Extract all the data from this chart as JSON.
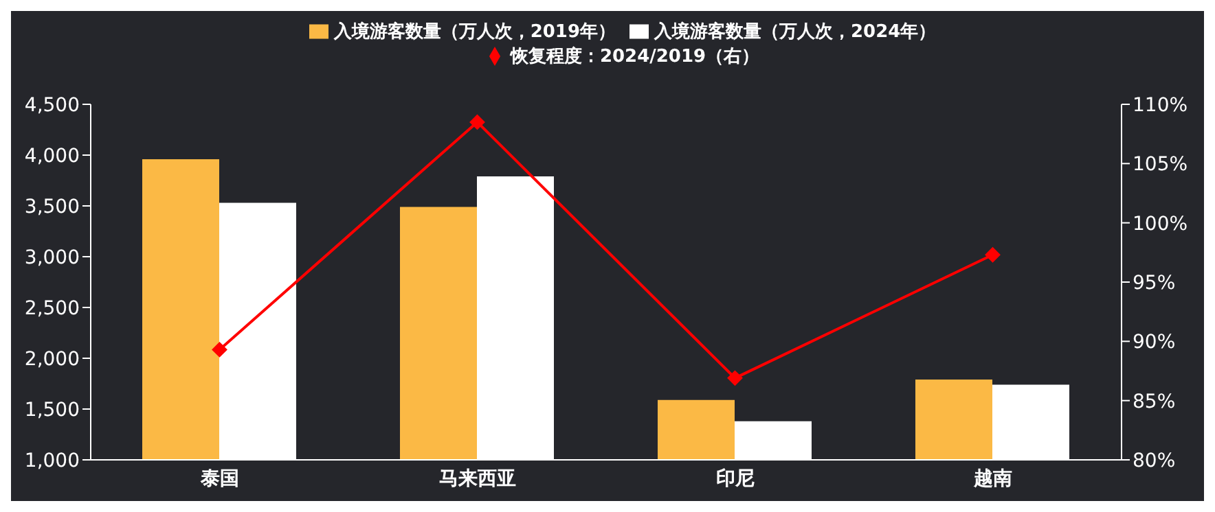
{
  "chart_data": {
    "type": "bar",
    "categories": [
      "泰国",
      "马来西亚",
      "印尼",
      "越南"
    ],
    "series": [
      {
        "name": "入境游客数量（万人次，2019年）",
        "color": "#fbb945",
        "values": [
          3960,
          3490,
          1590,
          1790
        ]
      },
      {
        "name": "入境游客数量（万人次，2024年）",
        "color": "#ffffff",
        "values": [
          3530,
          3790,
          1380,
          1740
        ]
      },
      {
        "name": "恢复程度：2024/2019（右）",
        "type": "line",
        "axis": "y2",
        "color": "#ff0000",
        "marker": "diamond",
        "values": [
          89.3,
          108.5,
          86.9,
          97.3
        ]
      }
    ],
    "ylim": [
      1000,
      4500
    ],
    "yticks": [
      {
        "value": 1000,
        "label": "1,000"
      },
      {
        "value": 1500,
        "label": "1,500"
      },
      {
        "value": 2000,
        "label": "2,000"
      },
      {
        "value": 2500,
        "label": "2,500"
      },
      {
        "value": 3000,
        "label": "3,000"
      },
      {
        "value": 3500,
        "label": "3,500"
      },
      {
        "value": 4000,
        "label": "4,000"
      },
      {
        "value": 4500,
        "label": "4,500"
      }
    ],
    "y2lim": [
      80,
      110
    ],
    "y2ticks": [
      {
        "value": 80,
        "label": "80%"
      },
      {
        "value": 85,
        "label": "85%"
      },
      {
        "value": 90,
        "label": "90%"
      },
      {
        "value": 95,
        "label": "95%"
      },
      {
        "value": 100,
        "label": "100%"
      },
      {
        "value": 105,
        "label": "105%"
      },
      {
        "value": 110,
        "label": "110%"
      }
    ],
    "legend": "top"
  }
}
